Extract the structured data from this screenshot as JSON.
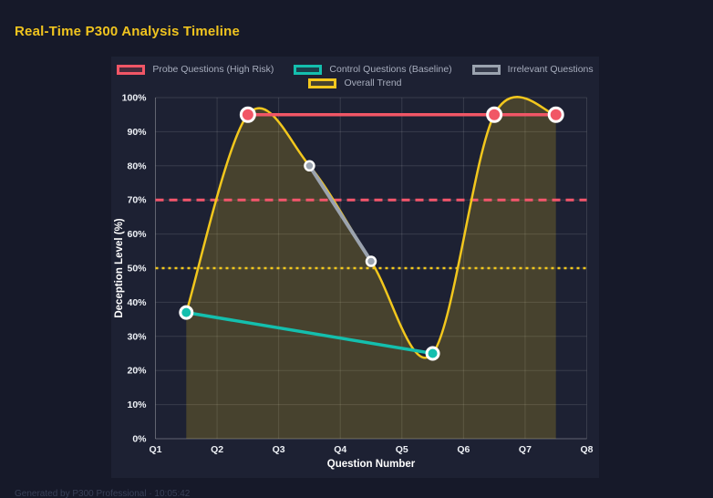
{
  "page": {
    "title": "Real-Time P300 Analysis Timeline",
    "footer": "Generated by P300 Professional · 10:05:42"
  },
  "chart_data": {
    "type": "line",
    "title": "Real-Time P300 Analysis Timeline",
    "xlabel": "Question Number",
    "ylabel": "Deception Level (%)",
    "xlim": [
      1,
      8
    ],
    "ylim": [
      0,
      100
    ],
    "x_ticks": [
      {
        "value": 1,
        "label": "Q1"
      },
      {
        "value": 2,
        "label": "Q2"
      },
      {
        "value": 3,
        "label": "Q3"
      },
      {
        "value": 4,
        "label": "Q4"
      },
      {
        "value": 5,
        "label": "Q5"
      },
      {
        "value": 6,
        "label": "Q6"
      },
      {
        "value": 7,
        "label": "Q7"
      },
      {
        "value": 8,
        "label": "Q8"
      }
    ],
    "y_ticks": [
      {
        "value": 0,
        "label": "0%"
      },
      {
        "value": 10,
        "label": "10%"
      },
      {
        "value": 20,
        "label": "20%"
      },
      {
        "value": 30,
        "label": "30%"
      },
      {
        "value": 40,
        "label": "40%"
      },
      {
        "value": 50,
        "label": "50%"
      },
      {
        "value": 60,
        "label": "60%"
      },
      {
        "value": 70,
        "label": "70%"
      },
      {
        "value": 80,
        "label": "80%"
      },
      {
        "value": 90,
        "label": "90%"
      },
      {
        "value": 100,
        "label": "100%"
      }
    ],
    "grid": true,
    "legend_position": "top",
    "legend_rows": [
      [
        0,
        1,
        2
      ],
      [
        3
      ]
    ],
    "series": [
      {
        "name": "Probe Questions (High Risk)",
        "color": "#f15666",
        "points": [
          [
            2.5,
            95
          ],
          [
            6.5,
            95
          ],
          [
            7.5,
            95
          ]
        ],
        "line_width": 3.5,
        "smooth": false,
        "fill": false,
        "point_radius": 7.5,
        "point_border_width": 3
      },
      {
        "name": "Control Questions (Baseline)",
        "color": "#14bfae",
        "points": [
          [
            1.5,
            37
          ],
          [
            5.5,
            25
          ]
        ],
        "line_width": 3.5,
        "smooth": false,
        "fill": false,
        "point_radius": 6.5,
        "point_border_width": 3
      },
      {
        "name": "Irrelevant Questions",
        "color": "#9ba3af",
        "points": [
          [
            3.5,
            80
          ],
          [
            4.5,
            52
          ]
        ],
        "line_width": 4,
        "smooth": false,
        "fill": false,
        "point_radius": 5,
        "point_border_width": 2.5
      },
      {
        "name": "Overall Trend",
        "color": "#f2c71d",
        "points": [
          [
            1.5,
            37
          ],
          [
            2.5,
            95
          ],
          [
            3.5,
            80
          ],
          [
            4.5,
            52
          ],
          [
            5.5,
            25
          ],
          [
            6.5,
            95
          ],
          [
            7.5,
            95
          ]
        ],
        "line_width": 2.5,
        "smooth": true,
        "fill": true,
        "fill_color": "rgba(242,199,29,0.2)",
        "point_radius": 0,
        "point_border_width": 0
      }
    ],
    "thresholds": [
      {
        "name": "probe-threshold-70",
        "value": 70,
        "color": "#f4566c",
        "dash": [
          9,
          6
        ],
        "width": 3
      },
      {
        "name": "baseline-threshold-50",
        "value": 50,
        "color": "#f2c71d",
        "dash": [
          3,
          4
        ],
        "width": 2.5
      }
    ]
  },
  "style": {
    "page_bg": "#161929",
    "panel_bg": "#1d2133",
    "grid_color": "rgba(255,255,255,0.12)",
    "axis_border_color": "rgba(255,255,255,0.3)",
    "tick_color": "#eef1f6",
    "axis_title_color": "#ffffff",
    "legend_text_color": "#a7adbd",
    "point_border_color": "#ffffff"
  }
}
